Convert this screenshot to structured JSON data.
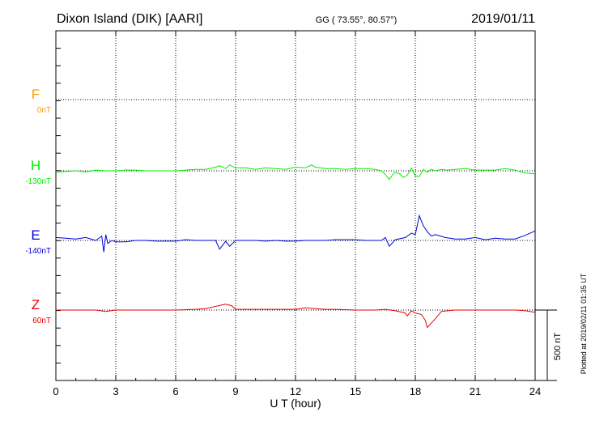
{
  "chart_data": {
    "type": "line",
    "title_left": "Dixon Island (DIK)  [AARI]",
    "title_mid": "GG ( 73.55°,  80.57°)",
    "title_right": "2019/01/11",
    "xlabel": "U T (hour)",
    "xlim": [
      0,
      24
    ],
    "x_ticks": [
      "0",
      "3",
      "6",
      "9",
      "12",
      "15",
      "18",
      "21",
      "24"
    ],
    "grid": true,
    "scale_label": "500 nT",
    "side_note": "Plotted at 2019/02/11 01:35 UT",
    "series": [
      {
        "name": "F",
        "baseline": "0nT",
        "color": "#f5a000",
        "x": [],
        "y": []
      },
      {
        "name": "H",
        "baseline": "-130nT",
        "color": "#00ee00",
        "x": [
          0,
          0.5,
          1,
          1.5,
          2,
          2.5,
          3,
          3.5,
          4,
          4.5,
          5,
          5.5,
          6,
          6.5,
          7,
          7.5,
          8,
          8.2,
          8.5,
          8.7,
          9,
          9.5,
          10,
          10.5,
          11,
          11.5,
          12,
          12.5,
          12.8,
          13,
          13.5,
          14,
          14.5,
          15,
          15.5,
          16,
          16.3,
          16.5,
          16.7,
          16.9,
          17,
          17.2,
          17.4,
          17.6,
          17.8,
          18,
          18.2,
          18.4,
          18.6,
          18.8,
          19,
          19.3,
          19.6,
          20,
          20.5,
          21,
          21.5,
          22,
          22.5,
          23,
          23.5,
          24
        ],
        "y": [
          -10,
          -5,
          0,
          -8,
          5,
          0,
          0,
          5,
          5,
          0,
          0,
          0,
          0,
          5,
          10,
          10,
          25,
          35,
          15,
          40,
          20,
          20,
          10,
          20,
          15,
          10,
          25,
          20,
          40,
          25,
          15,
          15,
          10,
          15,
          15,
          10,
          0,
          -25,
          -60,
          -20,
          -10,
          -20,
          -45,
          -30,
          20,
          -35,
          -40,
          10,
          -10,
          10,
          0,
          10,
          5,
          10,
          15,
          5,
          5,
          5,
          15,
          5,
          -15,
          -20
        ]
      },
      {
        "name": "E",
        "baseline": "-140nT",
        "color": "#0000dd",
        "x": [
          0,
          0.5,
          1,
          1.5,
          2,
          2.3,
          2.4,
          2.5,
          2.6,
          2.8,
          3,
          3.5,
          4,
          4.5,
          5,
          5.5,
          6,
          6.5,
          7,
          7.5,
          8,
          8.2,
          8.5,
          8.7,
          9,
          9.5,
          10,
          10.5,
          11,
          11.5,
          12,
          12.5,
          13,
          13.5,
          14,
          14.5,
          15,
          15.5,
          16,
          16.3,
          16.5,
          16.7,
          17,
          17.5,
          17.8,
          18,
          18.2,
          18.4,
          18.6,
          18.8,
          19,
          19.5,
          20,
          20.5,
          21,
          21.5,
          22,
          22.5,
          23,
          23.5,
          24
        ],
        "y": [
          20,
          15,
          10,
          20,
          0,
          30,
          -80,
          40,
          -20,
          0,
          -10,
          -10,
          0,
          0,
          -5,
          -5,
          -5,
          5,
          0,
          0,
          0,
          -60,
          -5,
          -40,
          0,
          0,
          0,
          -5,
          0,
          -5,
          -5,
          0,
          0,
          0,
          5,
          5,
          5,
          0,
          0,
          0,
          20,
          -40,
          5,
          20,
          50,
          40,
          170,
          100,
          60,
          30,
          40,
          20,
          10,
          10,
          20,
          5,
          15,
          10,
          10,
          35,
          65
        ]
      },
      {
        "name": "Z",
        "baseline": "60nT",
        "color": "#ee0000",
        "x": [
          0,
          1,
          2,
          2.5,
          3,
          4,
          5,
          6,
          7,
          7.5,
          8,
          8.5,
          8.8,
          9,
          10,
          11,
          12,
          12.5,
          13,
          13.5,
          14,
          15,
          16,
          16.5,
          17,
          17.5,
          17.6,
          17.8,
          18,
          18.3,
          18.5,
          18.6,
          18.8,
          19,
          19.3,
          19.6,
          20,
          21,
          22,
          23,
          23.5,
          24
        ],
        "y": [
          0,
          0,
          0,
          -10,
          0,
          0,
          0,
          0,
          5,
          10,
          25,
          40,
          30,
          5,
          5,
          5,
          5,
          15,
          10,
          5,
          5,
          0,
          0,
          5,
          -5,
          -20,
          -40,
          -5,
          -20,
          -30,
          -70,
          -120,
          -90,
          -60,
          -10,
          -5,
          0,
          0,
          0,
          0,
          -5,
          -15
        ]
      }
    ]
  }
}
